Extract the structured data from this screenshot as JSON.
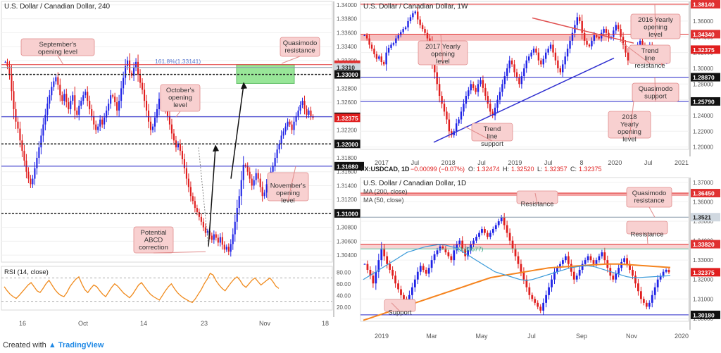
{
  "footer": {
    "created_with": "Created with",
    "brand": "TradingView"
  },
  "colors": {
    "up": "#1e22e6",
    "down": "#e01e1e",
    "red_zone": "#f4a5a5",
    "callout_fill": "#f8d0d0",
    "callout_border": "#e08a8a",
    "blue_line": "#2424c8",
    "red_line": "#e03030",
    "green_zone": "#7fe07f",
    "rsi": "#f08a1c",
    "ma200": "#f5841f",
    "ma50": "#3a9ad9",
    "trend": "#3030d0",
    "trend_red": "#e05050"
  },
  "chart_data": [
    {
      "id": "h4",
      "type": "candlestick",
      "title": "U.S. Dollar / Canadian Dollar, 240",
      "x_tick_labels": [
        "16",
        "Oct",
        "14",
        "23",
        "Nov",
        "18"
      ],
      "y_tick_labels": [
        "1.34000",
        "1.33800",
        "1.33600",
        "1.33400",
        "1.33200",
        "1.33000",
        "1.32800",
        "1.32600",
        "1.32400",
        "1.32200",
        "1.32000",
        "1.31800",
        "1.31600",
        "1.31400",
        "1.31200",
        "1.31000",
        "1.30800",
        "1.30600",
        "1.30400"
      ],
      "ylim": [
        1.303,
        1.3405
      ],
      "levels": [
        {
          "value": 1.3314,
          "label": "1.33140",
          "style": "red"
        },
        {
          "value": 1.331,
          "label": "1.3310",
          "style": "grey"
        },
        {
          "value": 1.33,
          "label": "1.33000",
          "style": "dashed"
        },
        {
          "value": 1.3239,
          "label": "1.32390",
          "style": "blue"
        },
        {
          "value": 1.32375,
          "label": "1.32375",
          "style": "redlabel"
        },
        {
          "value": 1.32,
          "label": "1.32000",
          "style": "dashed"
        },
        {
          "value": 1.3168,
          "label": "1.31680",
          "style": "blue"
        },
        {
          "value": 1.31,
          "label": "1.31000",
          "style": "dashed"
        }
      ],
      "fib_label": "161.8%(1.33141)",
      "annotations": [
        "September's opening level",
        "Quasimodo resistance",
        "October's opening level",
        "November's opening level",
        "Potential ABCD correction"
      ],
      "closes": [
        1.3318,
        1.3312,
        1.33,
        1.3276,
        1.325,
        1.3232,
        1.3222,
        1.3205,
        1.319,
        1.3176,
        1.316,
        1.315,
        1.3142,
        1.315,
        1.3165,
        1.318,
        1.3195,
        1.3212,
        1.3228,
        1.3242,
        1.3258,
        1.327,
        1.3282,
        1.329,
        1.3296,
        1.3285,
        1.327,
        1.3262,
        1.3272,
        1.326,
        1.325,
        1.3262,
        1.327,
        1.3248,
        1.3242,
        1.3255,
        1.3262,
        1.327,
        1.3275,
        1.3262,
        1.325,
        1.324,
        1.3228,
        1.322,
        1.3225,
        1.3235,
        1.3228,
        1.3238,
        1.3248,
        1.3258,
        1.327,
        1.3268,
        1.326,
        1.3248,
        1.3262,
        1.328,
        1.3295,
        1.3312,
        1.332,
        1.3302,
        1.3298,
        1.331,
        1.3318,
        1.33,
        1.3288,
        1.3278,
        1.3262,
        1.3248,
        1.3232,
        1.322,
        1.3225,
        1.3238,
        1.325,
        1.3265,
        1.3272,
        1.326,
        1.325,
        1.324,
        1.3228,
        1.3215,
        1.3205,
        1.3195,
        1.32,
        1.319,
        1.3178,
        1.3165,
        1.315,
        1.3138,
        1.3125,
        1.3118,
        1.3108,
        1.3102,
        1.3095,
        1.3088,
        1.308,
        1.3072,
        1.3075,
        1.3068,
        1.3062,
        1.307,
        1.3065,
        1.3058,
        1.3066,
        1.3055,
        1.3048,
        1.3052,
        1.3045,
        1.3056,
        1.307,
        1.3088,
        1.3108,
        1.3125,
        1.3148,
        1.317,
        1.3168,
        1.316,
        1.315,
        1.314,
        1.3148,
        1.3158,
        1.315,
        1.3138,
        1.3125,
        1.313,
        1.3142,
        1.315,
        1.316,
        1.3168,
        1.318,
        1.3192,
        1.32,
        1.3212,
        1.3218,
        1.3225,
        1.3232,
        1.3228,
        1.322,
        1.3232,
        1.324,
        1.3248,
        1.3256,
        1.3262,
        1.325,
        1.3242,
        1.3248,
        1.324,
        1.32375
      ]
    },
    {
      "id": "w1",
      "type": "candlestick",
      "title": "U.S. Dollar / Canadian Dollar, 1W",
      "x_tick_labels": [
        "2017",
        "Jul",
        "2018",
        "Jul",
        "2019",
        "Jul",
        "8",
        "2020",
        "Jul",
        "2021"
      ],
      "y_tick_labels": [
        "1.38000",
        "1.36000",
        "1.34000",
        "1.32000",
        "1.30000",
        "1.28000",
        "1.26000",
        "1.24000",
        "1.22000",
        "1.20000"
      ],
      "ylim": [
        1.197,
        1.385
      ],
      "levels": [
        {
          "value": 1.3814,
          "label": "1.38140",
          "style": "red"
        },
        {
          "value": 1.3434,
          "label": "1.34340",
          "style": "red"
        },
        {
          "value": 1.32375,
          "label": "1.32375",
          "style": "redlabel"
        },
        {
          "value": 1.2887,
          "label": "1.28870",
          "style": "blue"
        },
        {
          "value": 1.2579,
          "label": "1.25790",
          "style": "blue"
        }
      ],
      "annotations": [
        "2016 Yearly opening level",
        "2017 Yearly opening level",
        "Trend line resistance",
        "Quasimodo support",
        "2018 Yearly opening level",
        "Trend line support"
      ],
      "closes": [
        1.342,
        1.338,
        1.33,
        1.325,
        1.318,
        1.312,
        1.315,
        1.308,
        1.305,
        1.32,
        1.326,
        1.33,
        1.332,
        1.338,
        1.342,
        1.346,
        1.35,
        1.352,
        1.36,
        1.365,
        1.37,
        1.372,
        1.362,
        1.355,
        1.35,
        1.345,
        1.338,
        1.33,
        1.31,
        1.295,
        1.28,
        1.265,
        1.255,
        1.245,
        1.235,
        1.22,
        1.215,
        1.22,
        1.23,
        1.235,
        1.245,
        1.255,
        1.265,
        1.272,
        1.28,
        1.275,
        1.27,
        1.28,
        1.285,
        1.275,
        1.265,
        1.255,
        1.245,
        1.24,
        1.25,
        1.26,
        1.27,
        1.28,
        1.29,
        1.3,
        1.31,
        1.305,
        1.295,
        1.288,
        1.28,
        1.29,
        1.3,
        1.31,
        1.315,
        1.32,
        1.325,
        1.32,
        1.31,
        1.305,
        1.312,
        1.32,
        1.325,
        1.33,
        1.32,
        1.31,
        1.3,
        1.295,
        1.305,
        1.315,
        1.325,
        1.335,
        1.345,
        1.355,
        1.365,
        1.36,
        1.345,
        1.335,
        1.33,
        1.328,
        1.335,
        1.342,
        1.34,
        1.338,
        1.345,
        1.35,
        1.345,
        1.338,
        1.34,
        1.348,
        1.355,
        1.35,
        1.34,
        1.33,
        1.32,
        1.31,
        1.315,
        1.32,
        1.325,
        1.33,
        1.335,
        1.328,
        1.32,
        1.325,
        1.33,
        1.325,
        1.318,
        1.32,
        1.315,
        1.308,
        1.31,
        1.318,
        1.32375
      ]
    },
    {
      "id": "d1",
      "type": "candlestick",
      "title": "U.S. Dollar / Canadian Dollar, 1D",
      "ohlc_header": {
        "symbol": "FX:USDCAD, 1D",
        "change": "−0.00099 (−0.07%)",
        "o_label": "O:",
        "o": "1.32474",
        "h_label": "H:",
        "h": "1.32520",
        "l_label": "L:",
        "l": "1.32357",
        "c_label": "C:",
        "c": "1.32375"
      },
      "legend": [
        "MA (200, close)",
        "MA (50, close)"
      ],
      "x_tick_labels": [
        "2019",
        "Mar",
        "May",
        "Jul",
        "Sep",
        "Nov",
        "2020"
      ],
      "y_tick_labels": [
        "1.37000",
        "1.36000",
        "1.35000",
        "1.34000",
        "1.33000",
        "1.32000",
        "1.31000",
        "1.30000"
      ],
      "ylim": [
        1.2985,
        1.3725
      ],
      "levels": [
        {
          "value": 1.3645,
          "label": "1.36450",
          "style": "red"
        },
        {
          "value": 1.3521,
          "label": "1.3521",
          "style": "grey"
        },
        {
          "value": 1.3382,
          "label": "1.33820",
          "style": "red"
        },
        {
          "value": 1.32375,
          "label": "1.32375",
          "style": "redlabel"
        },
        {
          "value": 1.3018,
          "label": "1.30180",
          "style": "blue"
        }
      ],
      "fib_label": "(1.33577)",
      "annotations": [
        "Resistance",
        "Quasimodo resistance",
        "Resistance",
        "Support"
      ],
      "closes": [
        1.328,
        1.325,
        1.322,
        1.318,
        1.324,
        1.33,
        1.336,
        1.332,
        1.328,
        1.325,
        1.322,
        1.318,
        1.315,
        1.312,
        1.31,
        1.308,
        1.312,
        1.316,
        1.32,
        1.324,
        1.327,
        1.325,
        1.323,
        1.326,
        1.33,
        1.333,
        1.335,
        1.337,
        1.336,
        1.334,
        1.332,
        1.33,
        1.335,
        1.338,
        1.34,
        1.336,
        1.332,
        1.335,
        1.338,
        1.34,
        1.342,
        1.344,
        1.346,
        1.344,
        1.342,
        1.344,
        1.346,
        1.348,
        1.35,
        1.352,
        1.348,
        1.344,
        1.34,
        1.336,
        1.332,
        1.328,
        1.324,
        1.32,
        1.316,
        1.312,
        1.31,
        1.308,
        1.306,
        1.304,
        1.308,
        1.312,
        1.316,
        1.32,
        1.324,
        1.326,
        1.328,
        1.33,
        1.332,
        1.328,
        1.324,
        1.32,
        1.322,
        1.325,
        1.328,
        1.33,
        1.332,
        1.33,
        1.328,
        1.33,
        1.332,
        1.334,
        1.33,
        1.326,
        1.322,
        1.32,
        1.323,
        1.326,
        1.329,
        1.331,
        1.328,
        1.325,
        1.322,
        1.318,
        1.314,
        1.31,
        1.308,
        1.306,
        1.308,
        1.312,
        1.316,
        1.32,
        1.322,
        1.324,
        1.325,
        1.32375
      ],
      "ma200": [
        1.299,
        1.3,
        1.301,
        1.302,
        1.303,
        1.304,
        1.305,
        1.306,
        1.307,
        1.308,
        1.309,
        1.31,
        1.311,
        1.312,
        1.313,
        1.314,
        1.315,
        1.316,
        1.317,
        1.318,
        1.319,
        1.32,
        1.321,
        1.3215,
        1.322,
        1.3225,
        1.323,
        1.3235,
        1.324,
        1.3245,
        1.325,
        1.3255,
        1.326,
        1.3262,
        1.3264,
        1.3266,
        1.3268,
        1.327,
        1.3272,
        1.3274,
        1.3276,
        1.3278,
        1.328,
        1.328,
        1.328,
        1.3278,
        1.3276,
        1.3274,
        1.3272,
        1.327,
        1.3268,
        1.3266,
        1.3264,
        1.3262
      ],
      "ma50": [
        1.32,
        1.322,
        1.324,
        1.326,
        1.328,
        1.33,
        1.332,
        1.334,
        1.335,
        1.336,
        1.337,
        1.3375,
        1.338,
        1.3378,
        1.337,
        1.336,
        1.334,
        1.332,
        1.33,
        1.328,
        1.326,
        1.324,
        1.323,
        1.322,
        1.321,
        1.32,
        1.3195,
        1.32,
        1.321,
        1.322,
        1.323,
        1.324,
        1.325,
        1.326,
        1.3265,
        1.327,
        1.327,
        1.3265,
        1.3255,
        1.3245,
        1.3235,
        1.3225,
        1.3215,
        1.321,
        1.321,
        1.3212,
        1.3214,
        1.3216,
        1.3218,
        1.322
      ]
    },
    {
      "id": "rsi",
      "type": "line",
      "title": "RSI (14, close)",
      "y_tick_labels": [
        "80.00",
        "60.00",
        "40.00",
        "20.00"
      ],
      "ylim": [
        15,
        90
      ],
      "guides": [
        70,
        30
      ],
      "values": [
        55,
        48,
        42,
        38,
        35,
        40,
        46,
        52,
        58,
        62,
        55,
        48,
        45,
        52,
        60,
        66,
        58,
        50,
        44,
        40,
        38,
        45,
        55,
        62,
        68,
        72,
        60,
        50,
        45,
        52,
        58,
        55,
        48,
        42,
        38,
        46,
        54,
        60,
        56,
        50,
        44,
        40,
        36,
        42,
        50,
        58,
        62,
        55,
        48,
        42,
        38,
        35,
        32,
        40,
        48,
        55,
        60,
        52,
        45,
        40,
        36,
        33,
        30,
        28,
        34,
        42,
        50,
        60,
        68,
        78,
        75,
        65,
        58,
        52,
        48,
        55,
        62,
        68,
        72,
        66,
        58,
        54,
        60,
        66,
        70,
        64,
        58,
        62,
        66,
        70,
        64,
        56,
        52
      ]
    }
  ]
}
